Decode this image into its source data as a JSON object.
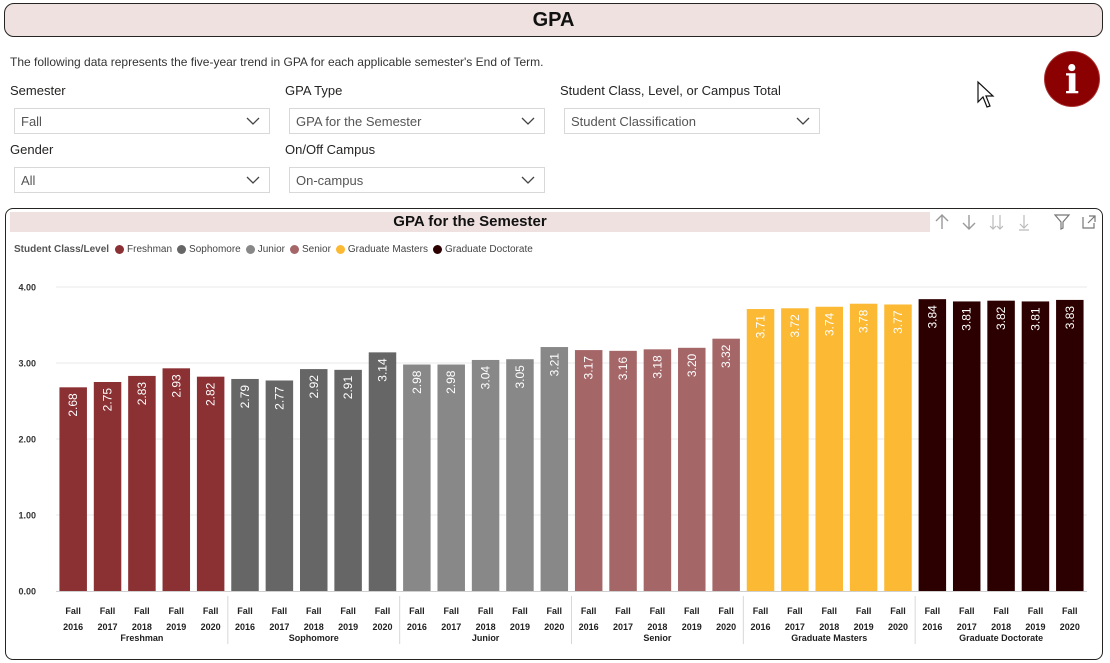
{
  "header": {
    "title": "GPA"
  },
  "description": "The following data represents the five-year trend in GPA for each applicable semester's End of Term.",
  "info_button": {
    "icon": "info-icon",
    "color": "#8b0000",
    "glyph": "i"
  },
  "filters": {
    "semester": {
      "label": "Semester",
      "value": "Fall"
    },
    "gpa_type": {
      "label": "GPA Type",
      "value": "GPA for the Semester"
    },
    "student_class": {
      "label": "Student Class, Level, or Campus Total",
      "value": "Student Classification"
    },
    "gender": {
      "label": "Gender",
      "value": "All"
    },
    "campus": {
      "label": "On/Off Campus",
      "value": "On-campus"
    }
  },
  "chart_data": {
    "type": "bar",
    "title": "GPA for the Semester",
    "legend_title": "Student Class/Level",
    "legend_position": "top-left",
    "ylim": [
      0,
      4
    ],
    "yticks": [
      "0.00",
      "1.00",
      "2.00",
      "3.00",
      "4.00"
    ],
    "grid": true,
    "groups": [
      {
        "name": "Freshman",
        "color": "#8b3033",
        "categories": [
          "Fall 2016",
          "Fall 2017",
          "Fall 2018",
          "Fall 2019",
          "Fall 2020"
        ],
        "values": [
          2.68,
          2.75,
          2.83,
          2.93,
          2.82
        ],
        "labels": [
          "2.68",
          "2.75",
          "2.83",
          "2.93",
          "2.82"
        ]
      },
      {
        "name": "Sophomore",
        "color": "#666666",
        "categories": [
          "Fall 2016",
          "Fall 2017",
          "Fall 2018",
          "Fall 2019",
          "Fall 2020"
        ],
        "values": [
          2.79,
          2.77,
          2.92,
          2.91,
          3.14
        ],
        "labels": [
          "2.79",
          "2.77",
          "2.92",
          "2.91",
          "3.14"
        ]
      },
      {
        "name": "Junior",
        "color": "#888888",
        "categories": [
          "Fall 2016",
          "Fall 2017",
          "Fall 2018",
          "Fall 2019",
          "Fall 2020"
        ],
        "values": [
          2.98,
          2.98,
          3.04,
          3.05,
          3.21
        ],
        "labels": [
          "2.98",
          "2.98",
          "3.04",
          "3.05",
          "3.21"
        ]
      },
      {
        "name": "Senior",
        "color": "#a56668",
        "categories": [
          "Fall 2016",
          "Fall 2017",
          "Fall 2018",
          "Fall 2019",
          "Fall 2020"
        ],
        "values": [
          3.17,
          3.16,
          3.18,
          3.2,
          3.32
        ],
        "labels": [
          "3.17",
          "3.16",
          "3.18",
          "3.20",
          "3.32"
        ]
      },
      {
        "name": "Graduate Masters",
        "color": "#fbb934",
        "categories": [
          "Fall 2016",
          "Fall 2017",
          "Fall 2018",
          "Fall 2019",
          "Fall 2020"
        ],
        "values": [
          3.71,
          3.72,
          3.74,
          3.78,
          3.77
        ],
        "labels": [
          "3.71",
          "3.72",
          "3.74",
          "3.78",
          "3.77"
        ]
      },
      {
        "name": "Graduate Doctorate",
        "color": "#2c0000",
        "categories": [
          "Fall 2016",
          "Fall 2017",
          "Fall 2018",
          "Fall 2019",
          "Fall 2020"
        ],
        "values": [
          3.84,
          3.81,
          3.82,
          3.81,
          3.83
        ],
        "labels": [
          "3.84",
          "3.81",
          "3.82",
          "3.81",
          "3.83"
        ]
      }
    ]
  }
}
